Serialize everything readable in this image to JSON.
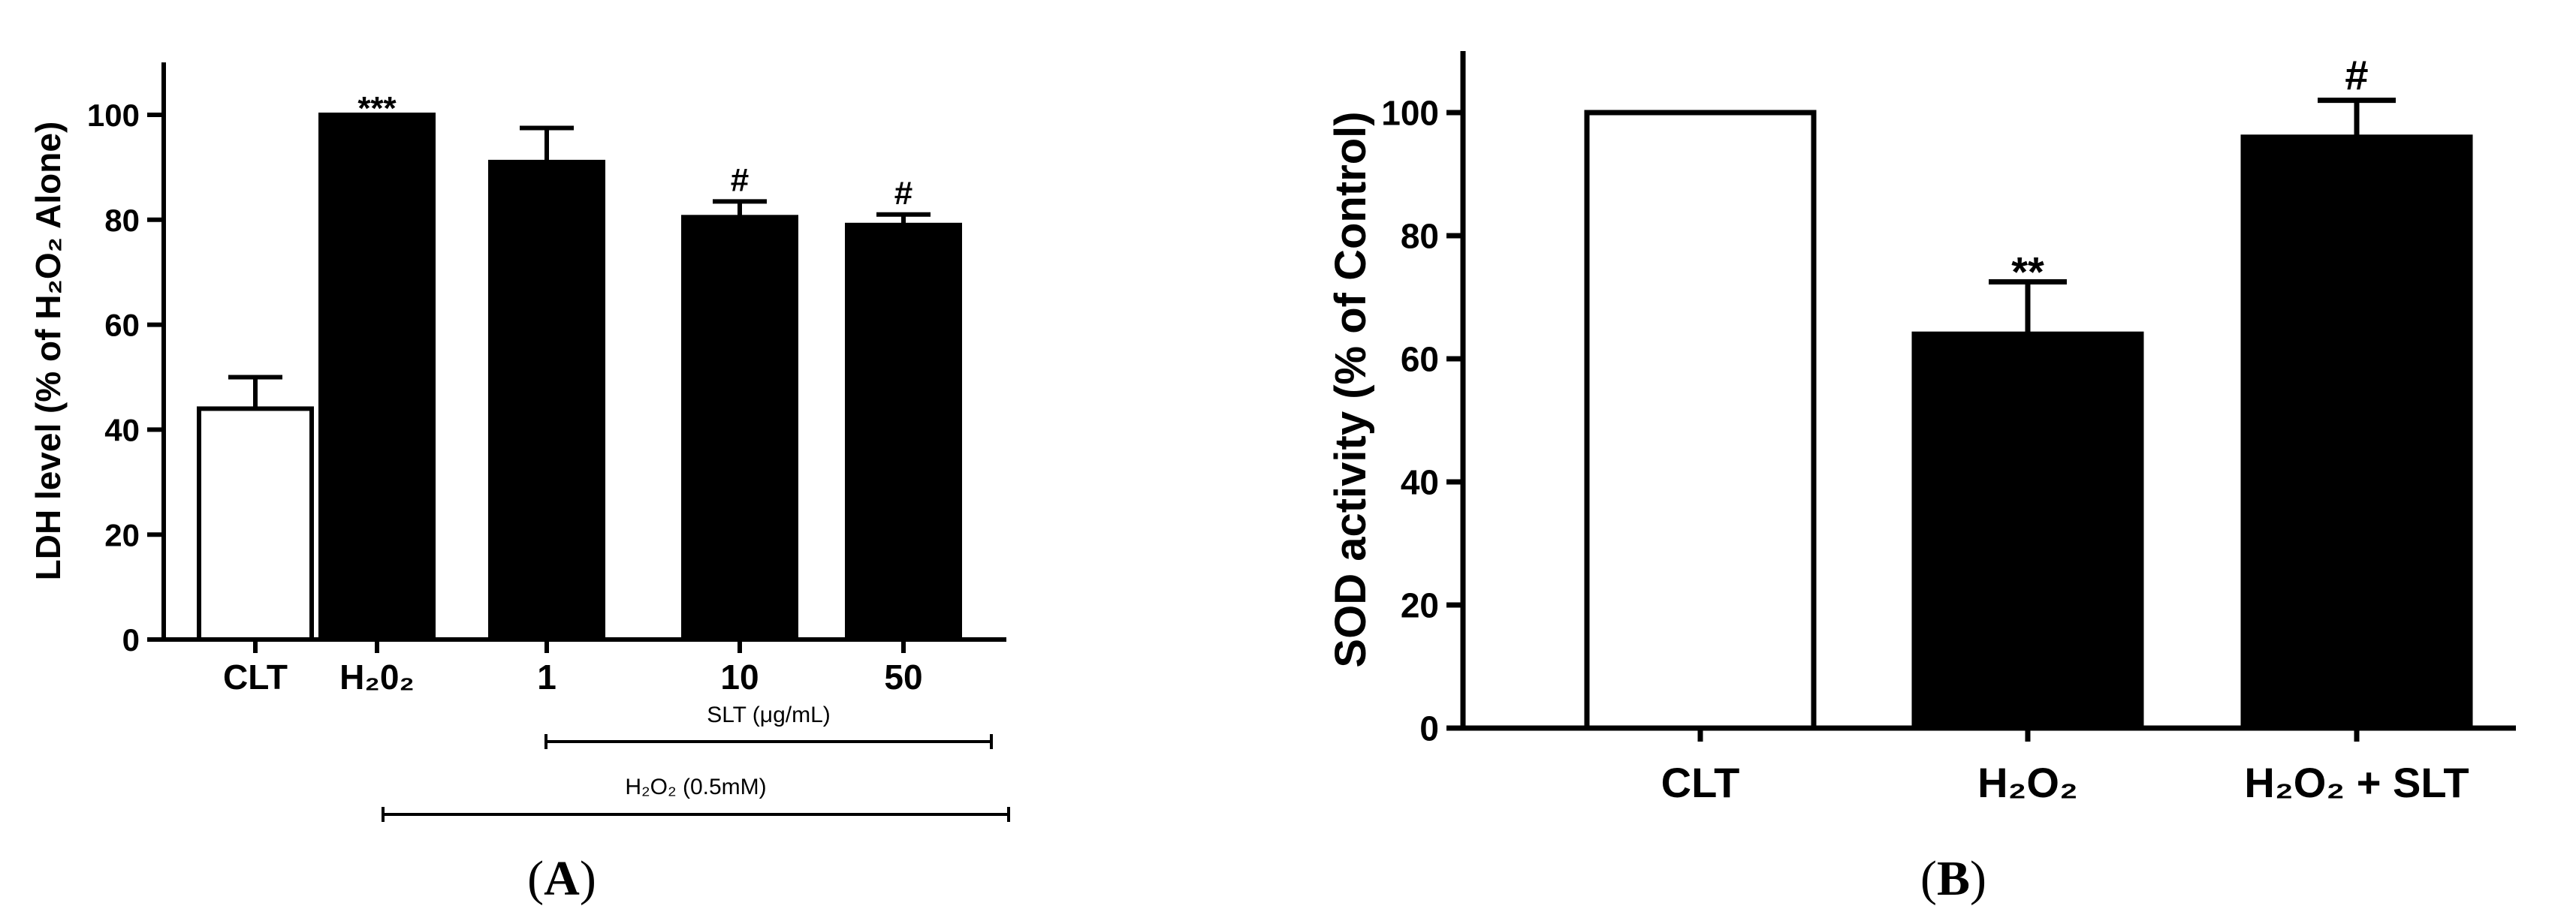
{
  "chart_data": [
    {
      "type": "bar",
      "panel_label": "A",
      "ylabel": "LDH level (% of H₂O₂ Alone)",
      "ylim": [
        0,
        110
      ],
      "yticks": [
        0,
        20,
        40,
        60,
        80,
        100
      ],
      "categories": [
        "CLT",
        "H₂0₂",
        "1",
        "10",
        "50"
      ],
      "values": [
        44,
        100,
        91,
        80.5,
        79
      ],
      "errors": [
        6,
        0,
        6.5,
        3,
        2
      ],
      "fills": [
        "#ffffff",
        "#000000",
        "#000000",
        "#000000",
        "#000000"
      ],
      "annotations": [
        "",
        "***",
        "",
        "#",
        "#"
      ],
      "brackets": [
        {
          "label": "SLT (μg/mL)",
          "from": 2,
          "to": 4
        },
        {
          "label": "H₂O₂ (0.5mM)",
          "from": 1,
          "to": 4
        }
      ]
    },
    {
      "type": "bar",
      "panel_label": "B",
      "ylabel": "SOD activity (% of Control)",
      "ylim": [
        0,
        110
      ],
      "yticks": [
        0,
        20,
        40,
        60,
        80,
        100
      ],
      "categories": [
        "CLT",
        "H₂O₂",
        "H₂O₂ + SLT"
      ],
      "values": [
        100,
        64,
        96
      ],
      "errors": [
        0,
        8.5,
        6
      ],
      "fills": [
        "#ffffff",
        "#000000",
        "#000000"
      ],
      "annotations": [
        "",
        "**",
        "#"
      ]
    }
  ]
}
